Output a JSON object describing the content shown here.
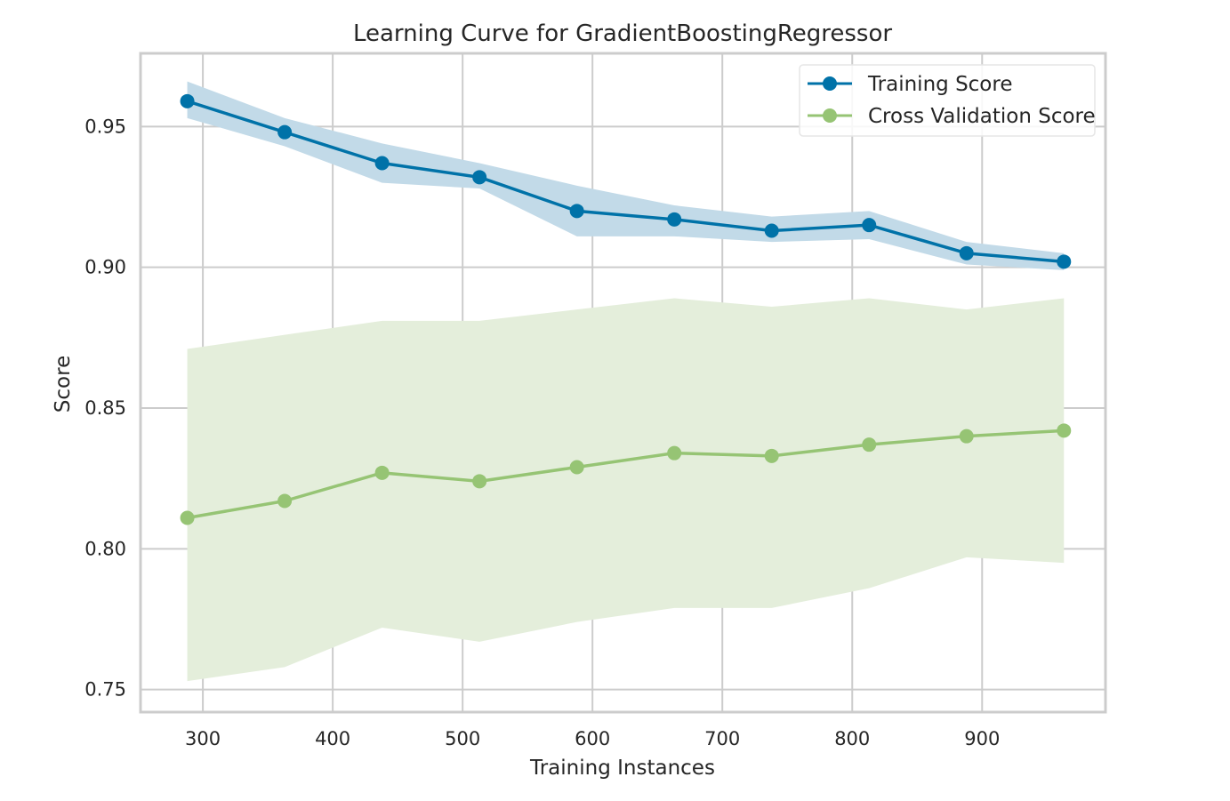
{
  "chart_data": {
    "type": "line",
    "title": "Learning Curve for GradientBoostingRegressor",
    "xlabel": "Training Instances",
    "ylabel": "Score",
    "xlim": [
      252,
      995
    ],
    "ylim": [
      0.742,
      0.976
    ],
    "xticks": [
      300,
      400,
      500,
      600,
      700,
      800,
      900
    ],
    "yticks": [
      0.75,
      0.8,
      0.85,
      0.9,
      0.95
    ],
    "ytick_labels": [
      "0.75",
      "0.80",
      "0.85",
      "0.90",
      "0.95"
    ],
    "xtick_labels": [
      "300",
      "400",
      "500",
      "600",
      "700",
      "800",
      "900"
    ],
    "grid": true,
    "legend_position": "top-right",
    "x": [
      288,
      363,
      438,
      513,
      588,
      663,
      738,
      813,
      888,
      963
    ],
    "series": [
      {
        "name": "Training Score",
        "color": "#0072a8",
        "band_color": "#c2dae8",
        "values": [
          0.959,
          0.948,
          0.937,
          0.932,
          0.92,
          0.917,
          0.913,
          0.915,
          0.905,
          0.902
        ],
        "upper": [
          0.966,
          0.953,
          0.944,
          0.937,
          0.929,
          0.922,
          0.918,
          0.92,
          0.909,
          0.905
        ],
        "lower": [
          0.953,
          0.943,
          0.93,
          0.928,
          0.911,
          0.911,
          0.909,
          0.91,
          0.901,
          0.899
        ]
      },
      {
        "name": "Cross Validation Score",
        "color": "#96c474",
        "band_color": "#e4eedb",
        "values": [
          0.811,
          0.817,
          0.827,
          0.824,
          0.829,
          0.834,
          0.833,
          0.837,
          0.84,
          0.842
        ],
        "upper": [
          0.871,
          0.876,
          0.881,
          0.881,
          0.885,
          0.889,
          0.886,
          0.889,
          0.885,
          0.889
        ],
        "lower": [
          0.753,
          0.758,
          0.772,
          0.767,
          0.774,
          0.779,
          0.779,
          0.786,
          0.797,
          0.795
        ]
      }
    ]
  }
}
